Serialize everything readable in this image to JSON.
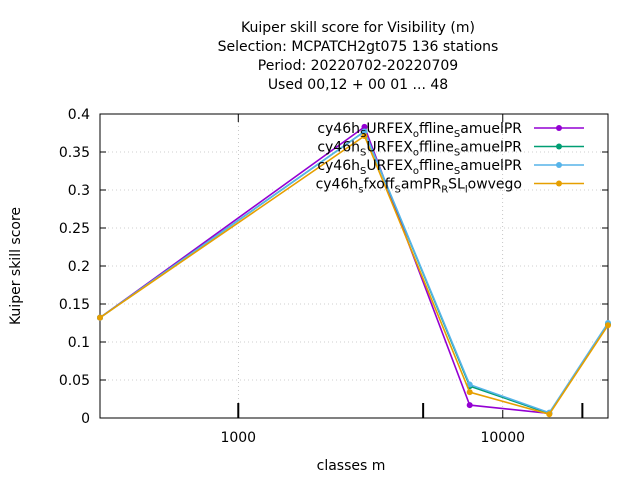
{
  "chart_data": {
    "type": "line",
    "title_lines": [
      "Kuiper skill score  for Visibility (m)",
      "Selection: MCPATCH2gt075    136 stations",
      "Period: 20220702-20220709",
      "Used  00,12  + 00 01 ... 48"
    ],
    "xlabel": "classes m",
    "ylabel": "Kuiper skill score",
    "x_scale": "log",
    "xlim": [
      300,
      25000
    ],
    "ylim": [
      0,
      0.4
    ],
    "x_ticks": [
      {
        "value": 1000,
        "label": "1000"
      },
      {
        "value": 10000,
        "label": "10000"
      }
    ],
    "y_ticks": [
      {
        "value": 0,
        "label": "0"
      },
      {
        "value": 0.05,
        "label": "0.05"
      },
      {
        "value": 0.1,
        "label": "0.1"
      },
      {
        "value": 0.15,
        "label": "0.15"
      },
      {
        "value": 0.2,
        "label": "0.2"
      },
      {
        "value": 0.25,
        "label": "0.25"
      },
      {
        "value": 0.3,
        "label": "0.3"
      },
      {
        "value": 0.35,
        "label": "0.35"
      },
      {
        "value": 0.4,
        "label": "0.4"
      }
    ],
    "x_marker_ticks": [
      1000,
      5000,
      20000
    ],
    "grid": true,
    "legend_position": "top-right",
    "series": [
      {
        "legend_parts": [
          [
            "cy46h",
            ""
          ],
          [
            "S",
            "sub"
          ],
          [
            "URFEX",
            ""
          ],
          [
            "o",
            "sub"
          ],
          [
            "ffline",
            ""
          ],
          [
            "S",
            "sub"
          ],
          [
            "amuelPR",
            ""
          ]
        ],
        "color": "#9400d3",
        "x": [
          300,
          3000,
          7500,
          15000,
          25000
        ],
        "y": [
          0.132,
          0.383,
          0.017,
          0.006,
          0.123
        ]
      },
      {
        "legend_parts": [
          [
            "cy46h",
            ""
          ],
          [
            "S",
            "sub"
          ],
          [
            "URFEX",
            ""
          ],
          [
            "o",
            "sub"
          ],
          [
            "ffline",
            ""
          ],
          [
            "S",
            "sub"
          ],
          [
            "amuelPR",
            ""
          ]
        ],
        "color": "#009e73",
        "x": [
          300,
          3000,
          7500,
          15000,
          25000
        ],
        "y": [
          0.132,
          0.377,
          0.042,
          0.006,
          0.124
        ]
      },
      {
        "legend_parts": [
          [
            "cy46h",
            ""
          ],
          [
            "S",
            "sub"
          ],
          [
            "URFEX",
            ""
          ],
          [
            "o",
            "sub"
          ],
          [
            "ffline",
            ""
          ],
          [
            "S",
            "sub"
          ],
          [
            "amuelPR",
            ""
          ]
        ],
        "color": "#56b4e9",
        "x": [
          300,
          3000,
          7500,
          15000,
          25000
        ],
        "y": [
          0.132,
          0.377,
          0.044,
          0.007,
          0.125
        ]
      },
      {
        "legend_parts": [
          [
            "cy46h",
            ""
          ],
          [
            "s",
            "sub"
          ],
          [
            "fxoff",
            ""
          ],
          [
            "S",
            "sub"
          ],
          [
            "amPR",
            ""
          ],
          [
            "R",
            "sub"
          ],
          [
            "SL",
            ""
          ],
          [
            "l",
            "sub"
          ],
          [
            "owvego",
            ""
          ]
        ],
        "color": "#e69f00",
        "x": [
          300,
          3000,
          7500,
          15000,
          25000
        ],
        "y": [
          0.132,
          0.371,
          0.034,
          0.005,
          0.122
        ]
      }
    ]
  }
}
